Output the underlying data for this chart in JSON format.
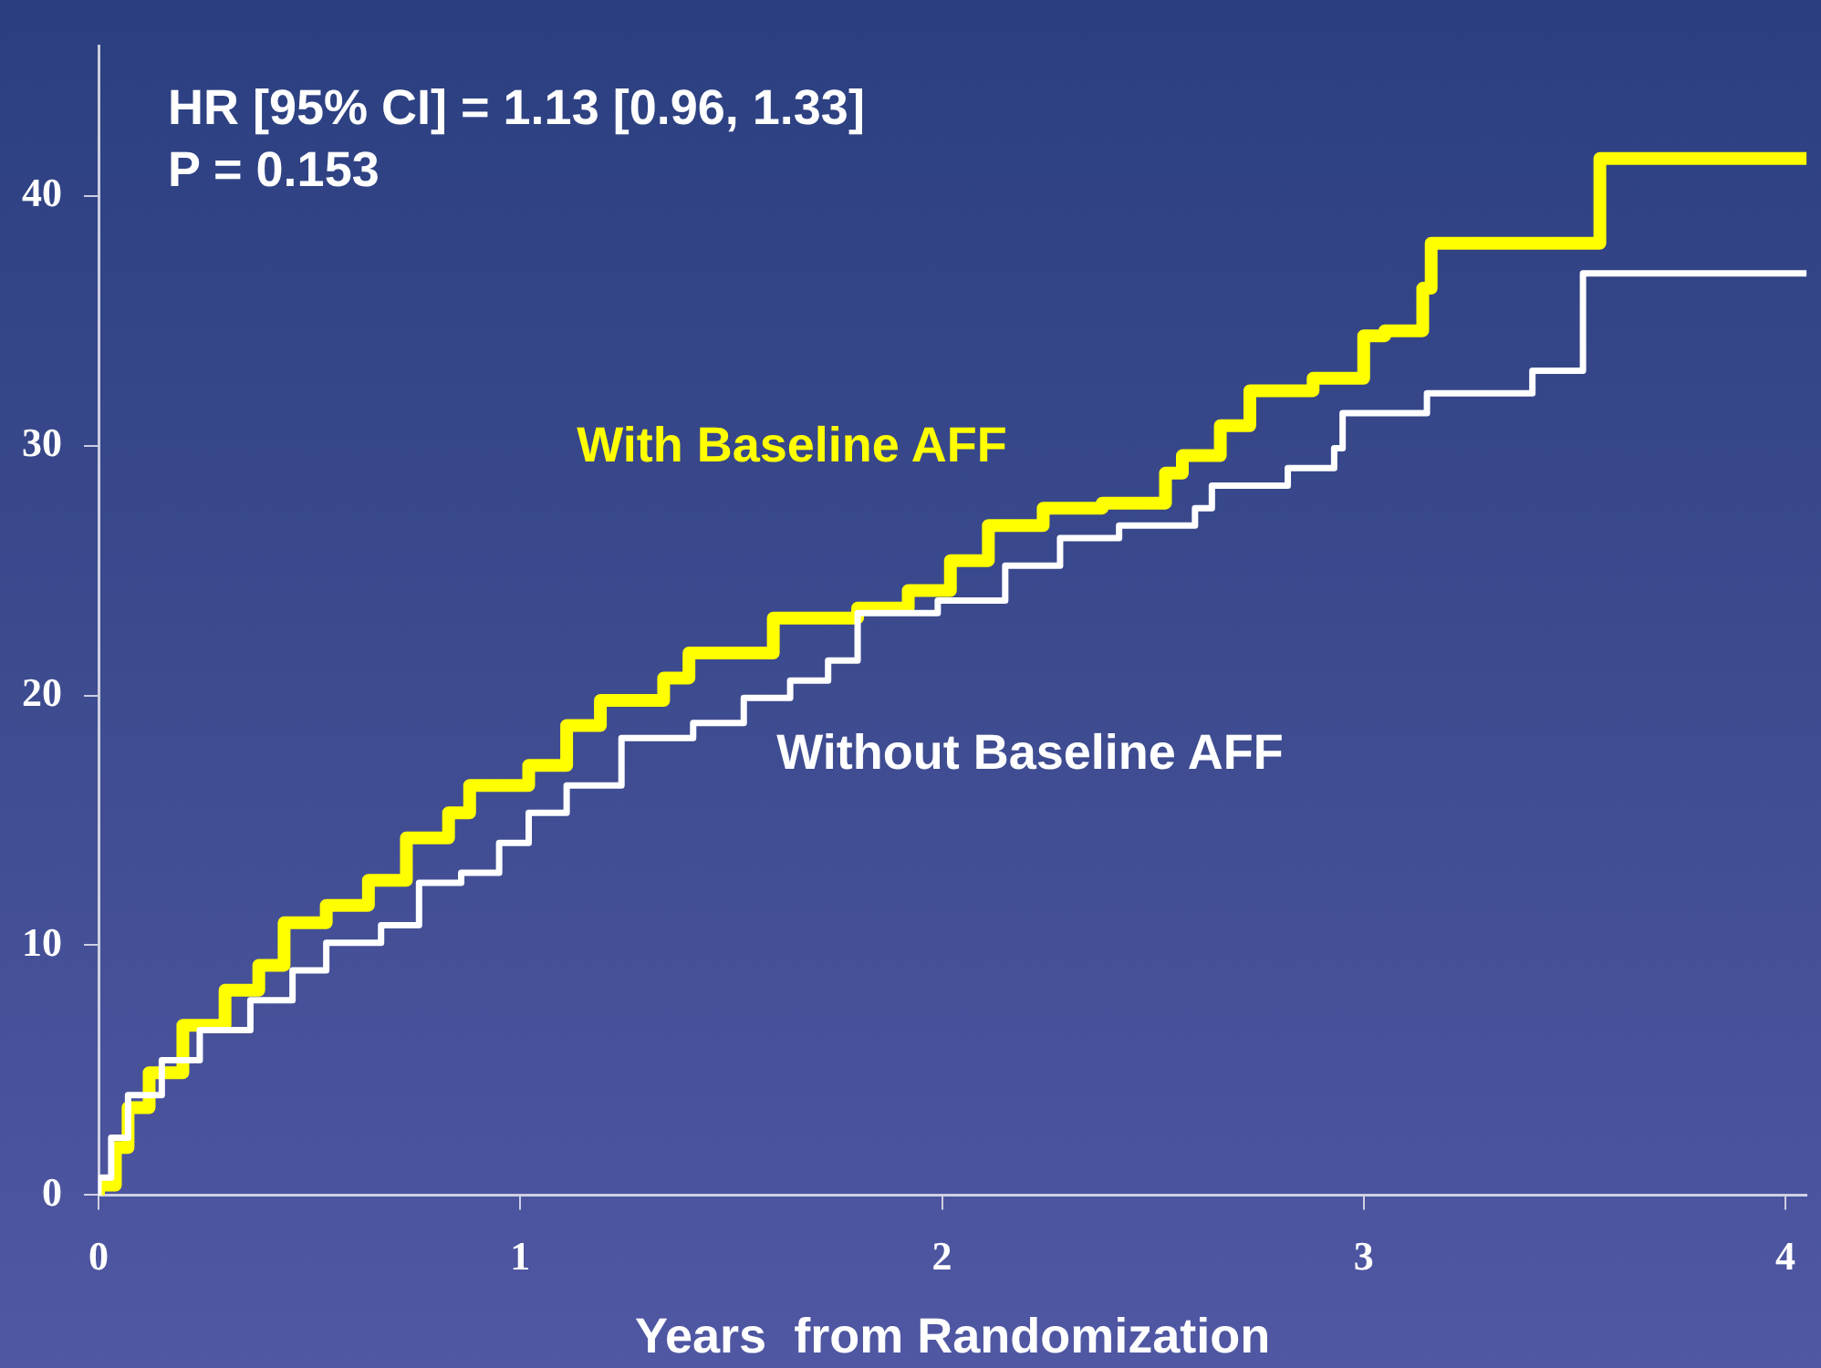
{
  "chart_data": {
    "type": "step",
    "xlabel": "Years  from Randomization",
    "xlim": [
      0,
      4.05
    ],
    "xticks": [
      0,
      1,
      2,
      3,
      4
    ],
    "ylim": [
      0,
      46
    ],
    "yticks": [
      0,
      10,
      20,
      30,
      40
    ],
    "grid": false,
    "legend": false,
    "marker": "none",
    "line_style": "solid",
    "annotations": [
      "HR [95% CI] = 1.13 [0.96, 1.33]",
      "P = 0.153"
    ],
    "series": [
      {
        "name": "With Baseline AFF",
        "color": "#ffff00",
        "x": [
          0,
          0.04,
          0.07,
          0.12,
          0.2,
          0.3,
          0.38,
          0.44,
          0.54,
          0.64,
          0.73,
          0.83,
          0.88,
          1.02,
          1.11,
          1.19,
          1.34,
          1.4,
          1.6,
          1.8,
          1.92,
          2.02,
          2.11,
          2.24,
          2.38,
          2.53,
          2.57,
          2.66,
          2.73,
          2.88,
          3.0,
          3.05,
          3.14,
          3.16,
          3.56,
          3.74,
          4.05
        ],
        "values": [
          0,
          0.4,
          1.9,
          3.5,
          4.9,
          6.8,
          8.2,
          9.2,
          10.9,
          11.6,
          12.6,
          14.3,
          15.3,
          16.4,
          17.2,
          18.8,
          19.8,
          20.7,
          21.7,
          23.1,
          23.5,
          24.2,
          25.4,
          26.8,
          27.5,
          27.7,
          28.9,
          29.6,
          30.8,
          32.2,
          32.7,
          34.4,
          34.6,
          36.3,
          38.1,
          41.5,
          41.5
        ]
      },
      {
        "name": "Without Baseline AFF",
        "color": "#ffffff",
        "x": [
          0,
          0.03,
          0.07,
          0.15,
          0.24,
          0.36,
          0.46,
          0.54,
          0.67,
          0.76,
          0.86,
          0.95,
          1.02,
          1.11,
          1.24,
          1.41,
          1.53,
          1.64,
          1.73,
          1.8,
          1.99,
          2.15,
          2.28,
          2.42,
          2.6,
          2.64,
          2.82,
          2.93,
          2.95,
          3.15,
          3.4,
          3.52,
          3.64,
          4.05
        ],
        "values": [
          0,
          0.7,
          2.3,
          4.0,
          5.4,
          6.6,
          7.8,
          9.0,
          10.1,
          10.8,
          12.5,
          12.9,
          14.1,
          15.3,
          16.4,
          18.3,
          18.9,
          19.9,
          20.6,
          21.4,
          23.3,
          23.8,
          25.2,
          26.3,
          26.8,
          27.5,
          28.4,
          29.1,
          29.9,
          31.3,
          32.1,
          33.0,
          36.9,
          36.9
        ]
      }
    ]
  }
}
